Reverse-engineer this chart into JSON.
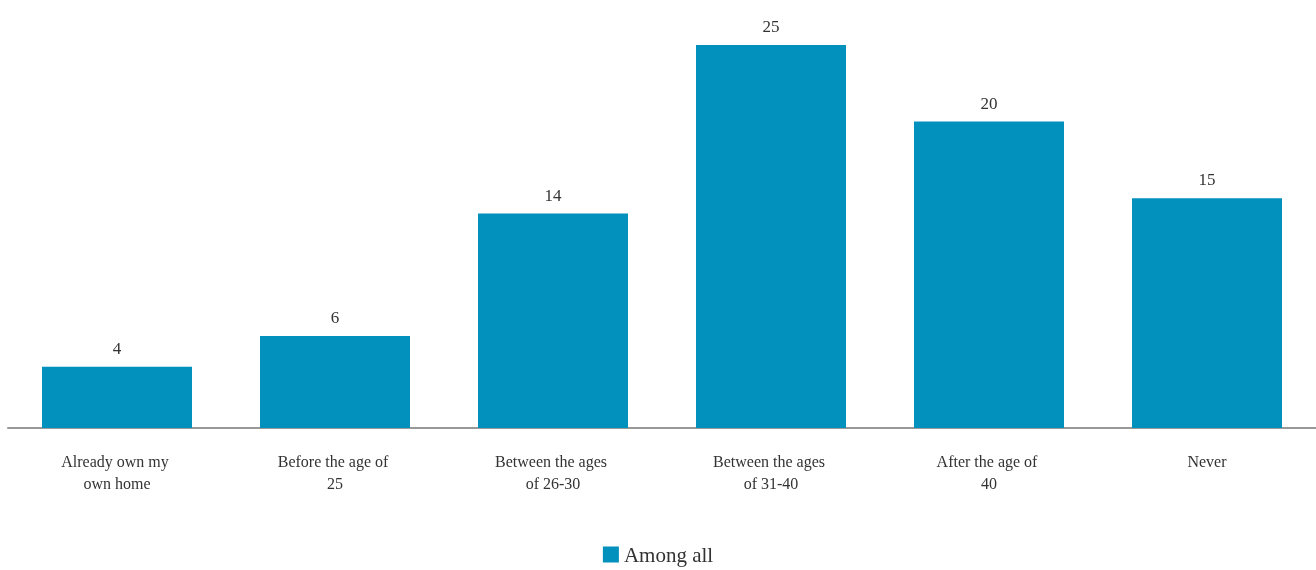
{
  "chart_data": {
    "type": "bar",
    "categories": [
      "Already own my own home",
      "Before the age of 25",
      "Between the ages of 26-30",
      "Between the ages of 31-40",
      "After the age of 40",
      "Never"
    ],
    "series": [
      {
        "name": "Among all",
        "color": "#0290bd",
        "values": [
          4,
          6,
          14,
          25,
          20,
          15
        ]
      }
    ],
    "data_labels": true,
    "legend": "bottom"
  }
}
